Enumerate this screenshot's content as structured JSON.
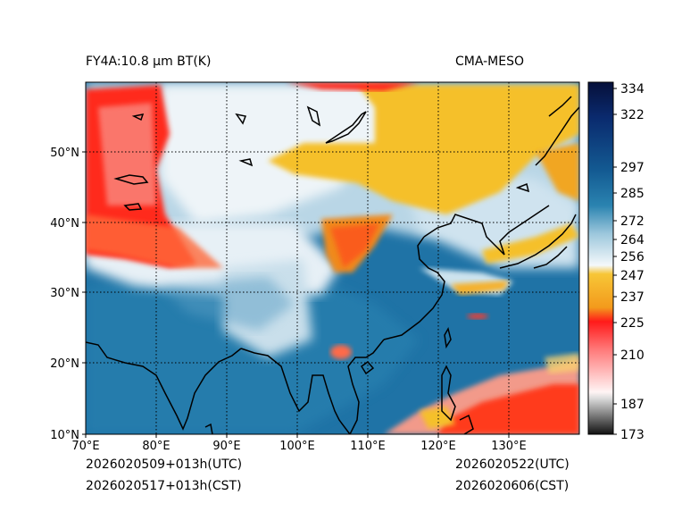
{
  "header": {
    "product_title": "FY4A:10.8 μm BT(K)",
    "model_name": "CMA-MESO"
  },
  "footer": {
    "init_utc": "2026020509+013h(UTC)",
    "init_cst": "2026020517+013h(CST)",
    "valid_utc": "2026020522(UTC)",
    "valid_cst": "2026020606(CST)"
  },
  "map": {
    "lon_labels": [
      "70°E",
      "80°E",
      "90°E",
      "100°E",
      "110°E",
      "120°E",
      "130°E"
    ],
    "lat_labels": [
      "50°N",
      "40°N",
      "30°N",
      "20°N",
      "10°N"
    ]
  },
  "colorbar": {
    "tick_labels": [
      "334",
      "322",
      "297",
      "285",
      "272",
      "264",
      "256",
      "247",
      "237",
      "225",
      "210",
      "187",
      "173"
    ]
  },
  "colors": {
    "ocean_warm": "#1a6fa0",
    "cold_cloud_red": "#ff2a1a",
    "mid_cloud_yellow": "#f5c02a",
    "high_cloud_white": "#eef4f8"
  }
}
